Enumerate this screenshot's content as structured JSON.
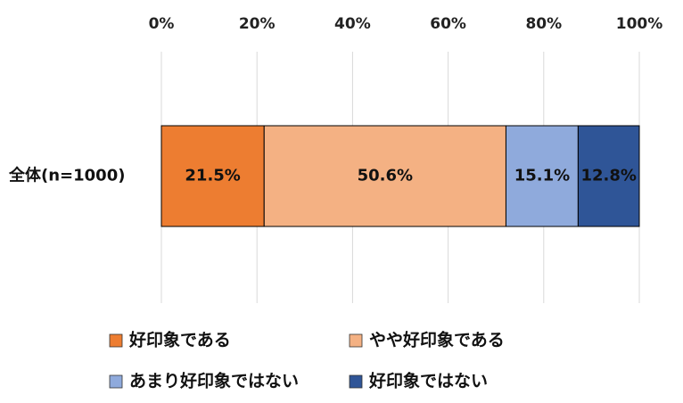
{
  "chart_data": {
    "type": "bar",
    "orientation": "horizontal",
    "stacked": "percent",
    "categories": [
      "全体(n=1000)"
    ],
    "series": [
      {
        "name": "好印象である",
        "values": [
          21.5
        ],
        "label": "21.5%",
        "color": "#ED7D31"
      },
      {
        "name": "やや好印象である",
        "values": [
          50.6
        ],
        "label": "50.6%",
        "color": "#F4B183"
      },
      {
        "name": "あまり好印象ではない",
        "values": [
          15.1
        ],
        "label": "15.1%",
        "color": "#8FAADC"
      },
      {
        "name": "好印象ではない",
        "values": [
          12.8
        ],
        "label": "12.8%",
        "color": "#2F5597"
      }
    ],
    "xlim": [
      0,
      100
    ],
    "xticks": [
      0,
      20,
      40,
      60,
      80,
      100
    ],
    "xtick_labels": [
      "0%",
      "20%",
      "40%",
      "60%",
      "80%",
      "100%"
    ],
    "axis_position": "top",
    "grid": true,
    "legend_position": "bottom",
    "title": "",
    "xlabel": "",
    "ylabel": ""
  }
}
